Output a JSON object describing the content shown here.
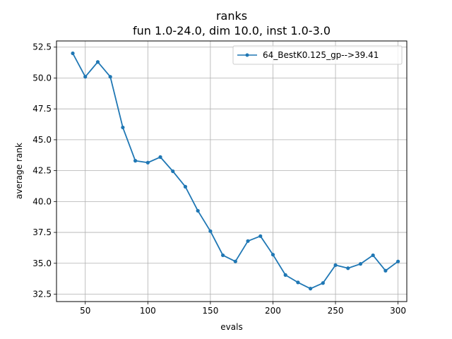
{
  "chart_data": {
    "type": "line",
    "title": "ranks",
    "subtitle": "fun 1.0-24.0, dim 10.0, inst 1.0-3.0",
    "xlabel": "evals",
    "ylabel": "average rank",
    "xlim": [
      27,
      307
    ],
    "ylim": [
      31.9,
      53.0
    ],
    "x_ticks": [
      50,
      100,
      150,
      200,
      250,
      300
    ],
    "y_ticks": [
      32.5,
      35.0,
      37.5,
      40.0,
      42.5,
      45.0,
      47.5,
      50.0,
      52.5
    ],
    "x_tick_labels": [
      "50",
      "100",
      "150",
      "200",
      "250",
      "300"
    ],
    "y_tick_labels": [
      "32.5",
      "35.0",
      "37.5",
      "40.0",
      "42.5",
      "45.0",
      "47.5",
      "50.0",
      "52.5"
    ],
    "grid": true,
    "legend_position": "top-right",
    "color": "#1f77b4",
    "series": [
      {
        "name": "64_BestK0.125_gp-->39.41",
        "x": [
          40,
          50,
          60,
          70,
          80,
          90,
          100,
          110,
          120,
          130,
          140,
          150,
          160,
          170,
          180,
          190,
          200,
          210,
          220,
          230,
          240,
          250,
          260,
          270,
          280,
          290,
          300
        ],
        "y": [
          52.0,
          50.1,
          51.3,
          50.1,
          46.0,
          43.3,
          43.15,
          43.6,
          42.45,
          41.2,
          39.25,
          37.6,
          35.65,
          35.15,
          36.8,
          37.2,
          35.7,
          34.05,
          33.45,
          32.95,
          33.4,
          34.85,
          34.6,
          34.95,
          35.65,
          34.4,
          35.15
        ]
      }
    ]
  }
}
